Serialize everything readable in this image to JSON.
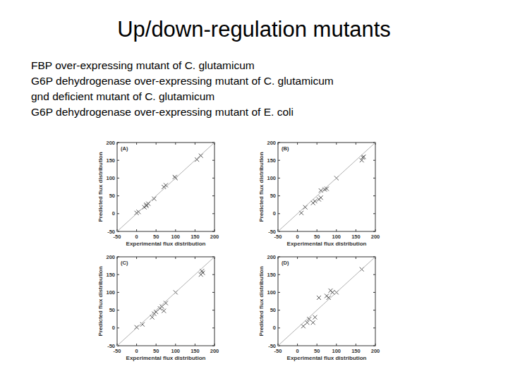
{
  "slide": {
    "title": "Up/down-regulation mutants",
    "lines": [
      "FBP over-expressing mutant of C. glutamicum",
      "G6P dehydrogenase over-expressing mutant of C. glutamicum",
      "gnd deficient mutant of C. glutamicum",
      "G6P dehydrogenase over-expressing mutant of E. coli"
    ]
  },
  "chart_data": [
    {
      "type": "scatter",
      "title": "(A)",
      "xlabel": "Experimental flux distribution",
      "ylabel": "Predicted flux distribution",
      "xlim": [
        -50,
        200
      ],
      "ylim": [
        -50,
        200
      ],
      "xticks": [
        -50,
        0,
        50,
        100,
        150,
        200
      ],
      "yticks": [
        -50,
        0,
        50,
        100,
        150,
        200
      ],
      "series": [
        {
          "type": "scatter",
          "marker": "x",
          "color": "#444444",
          "x": [
            0,
            5,
            20,
            25,
            30,
            25,
            45,
            70,
            75,
            100,
            98,
            155,
            165
          ],
          "values": [
            2,
            5,
            18,
            22,
            28,
            25,
            42,
            75,
            80,
            100,
            103,
            152,
            163
          ]
        },
        {
          "type": "line",
          "line_style": "solid",
          "color": "#b0b0b0",
          "x": [
            -50,
            200
          ],
          "values": [
            -50,
            200
          ]
        }
      ]
    },
    {
      "type": "scatter",
      "title": "(B)",
      "xlabel": "Experimental flux distribution",
      "ylabel": "Predicted flux distribution",
      "xlim": [
        -50,
        200
      ],
      "ylim": [
        -50,
        200
      ],
      "xticks": [
        -50,
        0,
        50,
        100,
        150,
        200
      ],
      "yticks": [
        -50,
        0,
        50,
        100,
        150,
        200
      ],
      "series": [
        {
          "type": "scatter",
          "marker": "x",
          "color": "#444444",
          "x": [
            10,
            20,
            40,
            45,
            55,
            60,
            70,
            60,
            75,
            100,
            165,
            168,
            170
          ],
          "values": [
            2,
            18,
            30,
            35,
            40,
            65,
            68,
            45,
            70,
            100,
            150,
            158,
            160
          ]
        },
        {
          "type": "line",
          "line_style": "solid",
          "color": "#b0b0b0",
          "x": [
            -50,
            200
          ],
          "values": [
            -50,
            200
          ]
        }
      ]
    },
    {
      "type": "scatter",
      "title": "(C)",
      "xlabel": "Experimental flux distribution",
      "ylabel": "Predicted flux distribution",
      "xlim": [
        -50,
        200
      ],
      "ylim": [
        -50,
        200
      ],
      "xticks": [
        -50,
        0,
        50,
        100,
        150,
        200
      ],
      "yticks": [
        -50,
        0,
        50,
        100,
        150,
        200
      ],
      "series": [
        {
          "type": "scatter",
          "marker": "x",
          "color": "#444444",
          "x": [
            0,
            15,
            40,
            45,
            50,
            60,
            70,
            65,
            75,
            100,
            165,
            168,
            170
          ],
          "values": [
            2,
            10,
            30,
            40,
            45,
            55,
            48,
            60,
            70,
            100,
            150,
            160,
            155
          ]
        },
        {
          "type": "line",
          "line_style": "solid",
          "color": "#b0b0b0",
          "x": [
            -50,
            200
          ],
          "values": [
            -50,
            200
          ]
        }
      ]
    },
    {
      "type": "scatter",
      "title": "(D)",
      "xlabel": "Experimental flux distribution",
      "ylabel": "Predicted flux distribution",
      "xlim": [
        -50,
        200
      ],
      "ylim": [
        -50,
        200
      ],
      "xticks": [
        -50,
        0,
        50,
        100,
        150,
        200
      ],
      "yticks": [
        -50,
        0,
        50,
        100,
        150,
        200
      ],
      "series": [
        {
          "type": "scatter",
          "marker": "x",
          "color": "#444444",
          "x": [
            15,
            25,
            30,
            40,
            45,
            55,
            75,
            80,
            85,
            90,
            100,
            165
          ],
          "values": [
            5,
            15,
            25,
            15,
            30,
            85,
            90,
            85,
            105,
            100,
            100,
            165
          ]
        },
        {
          "type": "line",
          "line_style": "solid",
          "color": "#b0b0b0",
          "x": [
            -50,
            200
          ],
          "values": [
            -50,
            200
          ]
        }
      ]
    }
  ]
}
